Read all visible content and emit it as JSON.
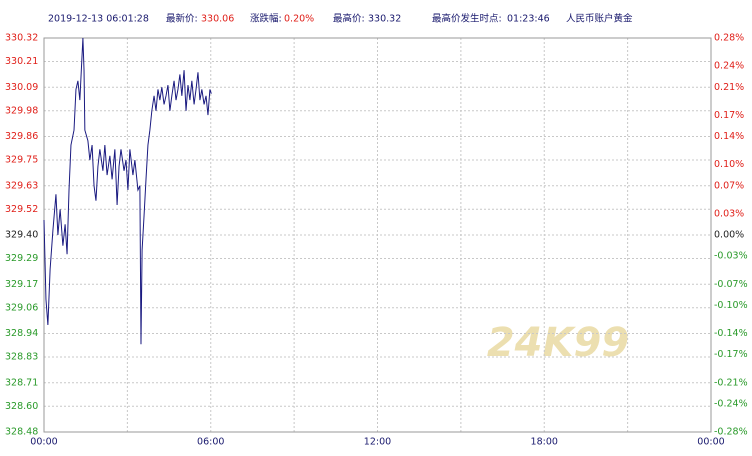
{
  "header": {
    "time": "2019-12-13 06:01:28",
    "last_label": "最新价:",
    "last_value": "330.06",
    "change_label": "涨跌幅:",
    "change_value": "0.20%",
    "high_label": "最高价:",
    "high_value": "330.32",
    "high_time_label": "最高价发生时点:",
    "high_time_value": "01:23:46",
    "product": "人民币账户黄金"
  },
  "watermark": "24K99",
  "chart_data": {
    "type": "line",
    "x": [
      0,
      0.07,
      0.14,
      0.22,
      0.32,
      0.43,
      0.5,
      0.58,
      0.68,
      0.76,
      0.83,
      0.9,
      0.97,
      1.08,
      1.15,
      1.22,
      1.29,
      1.4,
      1.44,
      1.47,
      1.58,
      1.65,
      1.73,
      1.8,
      1.87,
      1.94,
      2.01,
      2.12,
      2.19,
      2.27,
      2.37,
      2.45,
      2.55,
      2.63,
      2.7,
      2.77,
      2.88,
      2.95,
      3.02,
      3.09,
      3.2,
      3.27,
      3.38,
      3.45,
      3.49,
      3.53,
      3.6,
      3.67,
      3.74,
      3.81,
      3.88,
      3.96,
      4.03,
      4.1,
      4.17,
      4.24,
      4.32,
      4.39,
      4.46,
      4.53,
      4.6,
      4.68,
      4.75,
      4.82,
      4.89,
      4.96,
      5.04,
      5.11,
      5.18,
      5.25,
      5.32,
      5.4,
      5.47,
      5.54,
      5.61,
      5.68,
      5.76,
      5.83,
      5.9,
      5.97,
      6.02
    ],
    "series": [
      {
        "color": "#1a1a80",
        "values": [
          329.47,
          329.1,
          328.98,
          329.24,
          329.42,
          329.59,
          329.4,
          329.52,
          329.35,
          329.45,
          329.31,
          329.61,
          329.82,
          329.89,
          330.08,
          330.12,
          330.03,
          330.32,
          330.17,
          329.89,
          329.84,
          329.75,
          329.82,
          329.63,
          329.56,
          329.72,
          329.8,
          329.7,
          329.82,
          329.68,
          329.77,
          329.66,
          329.8,
          329.54,
          329.72,
          329.8,
          329.7,
          329.75,
          329.61,
          329.8,
          329.68,
          329.75,
          329.61,
          329.63,
          328.89,
          329.33,
          329.49,
          329.66,
          329.82,
          329.89,
          329.98,
          330.05,
          329.98,
          330.08,
          330.03,
          330.09,
          330.01,
          330.05,
          330.1,
          329.98,
          330.05,
          330.12,
          330.03,
          330.08,
          330.15,
          330.05,
          330.17,
          329.98,
          330.1,
          330.03,
          330.12,
          330.01,
          330.08,
          330.16,
          330.03,
          330.08,
          330.01,
          330.05,
          329.96,
          330.08,
          330.06
        ]
      }
    ],
    "xlim": [
      0,
      24
    ],
    "xticks": [
      {
        "value": 0,
        "label": "00:00"
      },
      {
        "value": 6,
        "label": "06:00"
      },
      {
        "value": 12,
        "label": "12:00"
      },
      {
        "value": 18,
        "label": "18:00"
      },
      {
        "value": 24,
        "label": "00:00"
      }
    ],
    "xminorticks": [
      3,
      9,
      15,
      21
    ],
    "ylim": [
      328.48,
      330.32
    ],
    "yticks": [
      330.32,
      330.21,
      330.09,
      329.98,
      329.86,
      329.75,
      329.63,
      329.52,
      {
        "value": 329.4,
        "label": "329.40"
      },
      329.29,
      329.17,
      329.06,
      328.94,
      328.83,
      328.71,
      {
        "value": 328.6,
        "label": "328.60"
      },
      328.48
    ],
    "y2lim": [
      -0.28,
      0.28
    ],
    "y2ticks": [
      {
        "value": 0.28,
        "label": "0.28%"
      },
      {
        "value": 0.24,
        "label": "0.24%"
      },
      {
        "value": 0.21,
        "label": "0.21%"
      },
      {
        "value": 0.17,
        "label": "0.17%"
      },
      {
        "value": 0.14,
        "label": "0.14%"
      },
      {
        "value": 0.1,
        "label": "0.10%"
      },
      {
        "value": 0.07,
        "label": "0.07%"
      },
      {
        "value": 0.03,
        "label": "0.03%"
      },
      {
        "value": 0,
        "label": "0.00%"
      },
      {
        "value": -0.03,
        "label": "-0.03%"
      },
      {
        "value": -0.07,
        "label": "-0.07%"
      },
      {
        "value": -0.1,
        "label": "-0.10%"
      },
      {
        "value": -0.14,
        "label": "-0.14%"
      },
      {
        "value": -0.17,
        "label": "-0.17%"
      },
      {
        "value": -0.21,
        "label": "-0.21%"
      },
      {
        "value": -0.24,
        "label": "-0.24%"
      },
      {
        "value": -0.28,
        "label": "-0.28%"
      }
    ],
    "grid": true
  }
}
